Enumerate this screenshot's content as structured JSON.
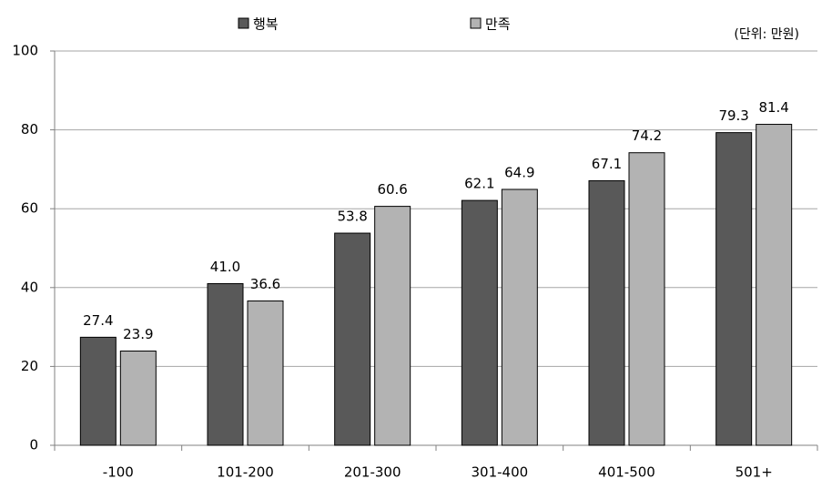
{
  "chart_data": {
    "type": "bar",
    "categories": [
      "-100",
      "101-200",
      "201-300",
      "301-400",
      "401-500",
      "501+"
    ],
    "series": [
      {
        "name": "행복",
        "color": "#595959",
        "values": [
          27.4,
          41.0,
          53.8,
          62.1,
          67.1,
          79.3
        ],
        "value_labels": [
          "27.4",
          "41.0",
          "53.8",
          "62.1",
          "67.1",
          "79.3"
        ]
      },
      {
        "name": "만족",
        "color": "#b3b3b3",
        "values": [
          23.9,
          36.6,
          60.6,
          64.9,
          74.2,
          81.4
        ],
        "value_labels": [
          "23.9",
          "36.6",
          "60.6",
          "64.9",
          "74.2",
          "81.4"
        ]
      }
    ],
    "annotation": "(단위: 만원)",
    "ylim": [
      0,
      100
    ],
    "yticks": [
      0,
      20,
      40,
      60,
      80,
      100
    ],
    "grid": true,
    "legend": "top"
  }
}
